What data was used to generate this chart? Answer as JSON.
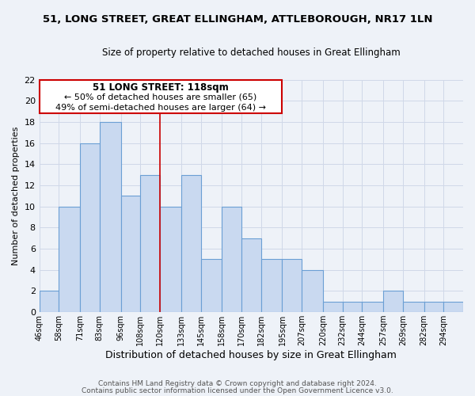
{
  "title": "51, LONG STREET, GREAT ELLINGHAM, ATTLEBOROUGH, NR17 1LN",
  "subtitle": "Size of property relative to detached houses in Great Ellingham",
  "xlabel": "Distribution of detached houses by size in Great Ellingham",
  "ylabel": "Number of detached properties",
  "bin_labels": [
    "46sqm",
    "58sqm",
    "71sqm",
    "83sqm",
    "96sqm",
    "108sqm",
    "120sqm",
    "133sqm",
    "145sqm",
    "158sqm",
    "170sqm",
    "182sqm",
    "195sqm",
    "207sqm",
    "220sqm",
    "232sqm",
    "244sqm",
    "257sqm",
    "269sqm",
    "282sqm",
    "294sqm"
  ],
  "bin_edges": [
    46,
    58,
    71,
    83,
    96,
    108,
    120,
    133,
    145,
    158,
    170,
    182,
    195,
    207,
    220,
    232,
    244,
    257,
    269,
    282,
    294,
    306
  ],
  "counts": [
    2,
    10,
    16,
    18,
    11,
    13,
    10,
    13,
    5,
    10,
    7,
    5,
    5,
    4,
    1,
    1,
    1,
    2,
    1,
    1,
    1
  ],
  "ylim": [
    0,
    22
  ],
  "yticks": [
    0,
    2,
    4,
    6,
    8,
    10,
    12,
    14,
    16,
    18,
    20,
    22
  ],
  "bar_facecolor": "#c9d9f0",
  "bar_edgecolor": "#6b9fd4",
  "grid_color": "#d0d8e8",
  "bg_color": "#eef2f8",
  "property_line_x": 120,
  "property_size": 118,
  "annotation_title": "51 LONG STREET: 118sqm",
  "annotation_line1": "← 50% of detached houses are smaller (65)",
  "annotation_line2": "49% of semi-detached houses are larger (64) →",
  "annotation_box_color": "#cc0000",
  "footer_line1": "Contains HM Land Registry data © Crown copyright and database right 2024.",
  "footer_line2": "Contains public sector information licensed under the Open Government Licence v3.0."
}
